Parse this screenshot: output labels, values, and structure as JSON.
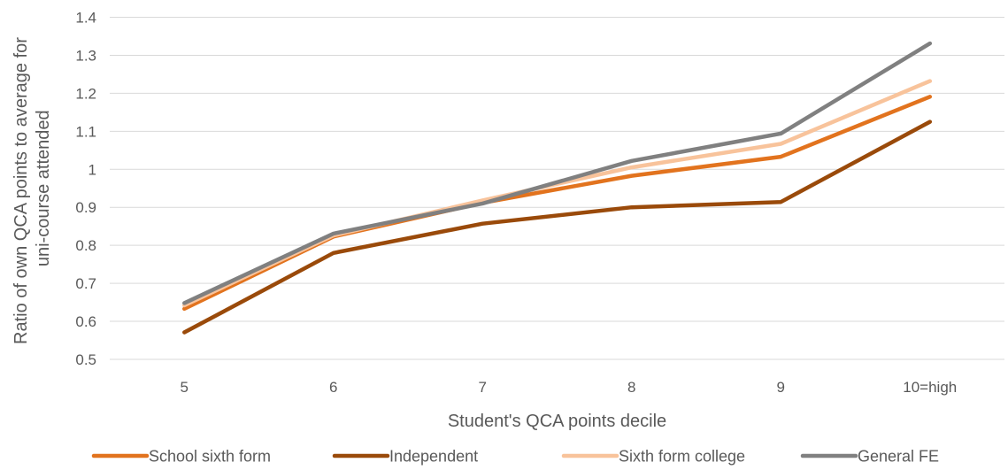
{
  "chart_data": {
    "type": "line",
    "title": "",
    "xlabel": "Student's QCA points decile",
    "ylabel_lines": [
      "Ratio of own QCA points to average for",
      "uni-course attended"
    ],
    "categories": [
      "5",
      "6",
      "7",
      "8",
      "9",
      "10=high"
    ],
    "y_ticks": [
      "0.5",
      "0.6",
      "0.7",
      "0.8",
      "0.9",
      "1",
      "1.1",
      "1.2",
      "1.3",
      "1.4"
    ],
    "ylim": [
      0.5,
      1.4
    ],
    "grid": true,
    "legend_position": "bottom",
    "series": [
      {
        "name": "School sixth form",
        "color": "#e2731e",
        "values": [
          0.633,
          0.823,
          0.912,
          0.983,
          1.033,
          1.191
        ]
      },
      {
        "name": "Independent",
        "color": "#9a4a0a",
        "values": [
          0.571,
          0.78,
          0.857,
          0.9,
          0.914,
          1.125
        ]
      },
      {
        "name": "Sixth form college",
        "color": "#f8c39b",
        "values": [
          0.642,
          0.826,
          0.918,
          1.005,
          1.067,
          1.232
        ]
      },
      {
        "name": "General FE",
        "color": "#808080",
        "values": [
          0.648,
          0.831,
          0.91,
          1.022,
          1.094,
          1.331
        ]
      }
    ]
  }
}
